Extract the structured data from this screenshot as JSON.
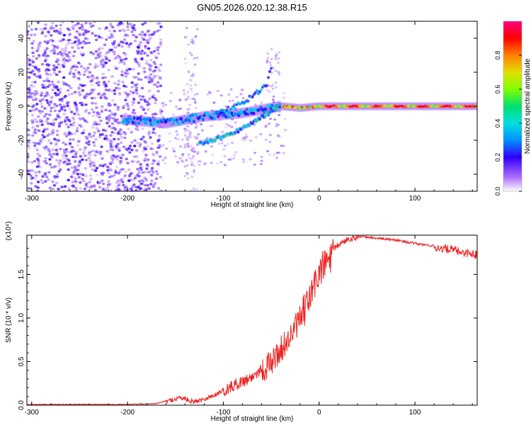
{
  "title": "GN05.2026.020.12.38.R15",
  "chart_data": [
    {
      "type": "heatmap",
      "xlabel": "Height of straight line (km)",
      "ylabel": "Frequency (Hz)",
      "xlim": [
        -305,
        165
      ],
      "ylim": [
        -50,
        50
      ],
      "xticks": [
        -300,
        -200,
        -100,
        0,
        100
      ],
      "yticks": [
        -40,
        -20,
        0,
        20,
        40
      ],
      "colorbar": {
        "label": "Normalized spectral amplitude",
        "range": [
          0,
          1
        ],
        "ticks": [
          "0.0",
          "0.2",
          "0.4",
          "0.6",
          "0.8"
        ],
        "colors": [
          "#ffffff",
          "#b070ff",
          "#3000ff",
          "#0090ff",
          "#00e0e0",
          "#00e070",
          "#80ff00",
          "#e0e000",
          "#ff8000",
          "#ff0000",
          "#ff0080"
        ]
      },
      "ridge": {
        "main_track": [
          [
            -200,
            -8
          ],
          [
            -180,
            -9
          ],
          [
            -160,
            -10
          ],
          [
            -140,
            -8
          ],
          [
            -120,
            -6
          ],
          [
            -100,
            -5
          ],
          [
            -80,
            -4
          ],
          [
            -60,
            -2
          ],
          [
            -40,
            0
          ],
          [
            -20,
            -1
          ],
          [
            0,
            0
          ],
          [
            40,
            0
          ],
          [
            80,
            0
          ],
          [
            120,
            0
          ],
          [
            160,
            0
          ]
        ],
        "lower_track": [
          [
            -125,
            -22
          ],
          [
            -110,
            -20
          ],
          [
            -95,
            -17
          ],
          [
            -80,
            -13
          ],
          [
            -65,
            -8
          ],
          [
            -50,
            -3
          ],
          [
            -40,
            0
          ]
        ],
        "upper_branch": [
          [
            -110,
            -5
          ],
          [
            -95,
            -2
          ],
          [
            -80,
            2
          ],
          [
            -65,
            8
          ],
          [
            -55,
            12
          ],
          [
            -50,
            22
          ]
        ]
      }
    },
    {
      "type": "line",
      "xlabel": "Height of straight line (km)",
      "ylabel": "SNR (10 * v/v)",
      "yscale_label": "(x10⁴)",
      "xlim": [
        -305,
        165
      ],
      "ylim": [
        0,
        1.95
      ],
      "xticks": [
        -300,
        -200,
        -100,
        0,
        100
      ],
      "yticks": [
        0.0,
        0.5,
        1.0,
        1.5
      ],
      "ytick_labels": [
        "0.0",
        "0.5",
        "1.0",
        "1.5"
      ],
      "color": "#ee2222",
      "x": [
        -305,
        -250,
        -200,
        -170,
        -160,
        -145,
        -130,
        -110,
        -90,
        -70,
        -60,
        -50,
        -40,
        -30,
        -20,
        -10,
        0,
        10,
        20,
        30,
        40,
        50,
        60,
        80,
        100,
        120,
        140,
        150,
        165
      ],
      "y": [
        0.01,
        0.01,
        0.01,
        0.02,
        0.05,
        0.1,
        0.05,
        0.12,
        0.25,
        0.35,
        0.45,
        0.55,
        0.7,
        0.85,
        1.05,
        1.3,
        1.6,
        1.75,
        1.85,
        1.92,
        1.94,
        1.93,
        1.92,
        1.9,
        1.86,
        1.83,
        1.8,
        1.77,
        1.75
      ]
    }
  ]
}
